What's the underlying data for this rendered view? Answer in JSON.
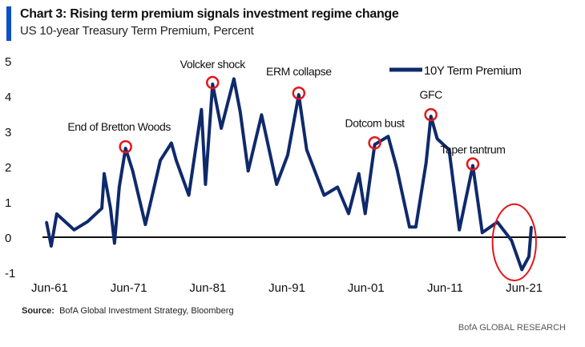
{
  "title": "Chart 3: Rising term premium signals investment regime change",
  "subtitle": "US 10-year Treasury Term Premium, Percent",
  "source_label": "Source:",
  "source_text": "BofA Global Investment Strategy, Bloomberg",
  "footer": "BofA GLOBAL RESEARCH",
  "colors": {
    "line": "#0f2a6b",
    "annotation": "#e3161b",
    "title_bar": "#0a4fc8"
  },
  "chart_data": {
    "type": "line",
    "title": "Chart 3: Rising term premium signals investment regime change",
    "ylabel": "",
    "xlabel": "",
    "ylim": [
      -1,
      5
    ],
    "xlim": [
      1961,
      2022.5
    ],
    "grid": false,
    "legend_position": "top-right",
    "yticks": [
      "5",
      "4",
      "3",
      "2",
      "1",
      "0",
      "-1"
    ],
    "xticks": [
      {
        "label": "Jun-61",
        "year": 1961.5
      },
      {
        "label": "Jun-71",
        "year": 1971.5
      },
      {
        "label": "Jun-81",
        "year": 1981.5
      },
      {
        "label": "Jun-91",
        "year": 1991.5
      },
      {
        "label": "Jun-01",
        "year": 2001.5
      },
      {
        "label": "Jun-11",
        "year": 2011.5
      },
      {
        "label": "Jun-21",
        "year": 2021.5
      }
    ],
    "series": [
      {
        "name": "10Y Term Premium",
        "x": [
          1961.1,
          1961.7,
          1962.4,
          1964.6,
          1966.3,
          1968.1,
          1968.4,
          1969.2,
          1969.7,
          1970.3,
          1971.1,
          1972.0,
          1973.6,
          1974.4,
          1975.5,
          1976.9,
          1977.5,
          1979.1,
          1980.7,
          1981.2,
          1982.1,
          1983.2,
          1984.8,
          1985.6,
          1986.6,
          1988.3,
          1990.2,
          1991.6,
          1993.0,
          1994.0,
          1996.2,
          1997.9,
          1999.3,
          2000.6,
          2001.4,
          2002.6,
          2004.3,
          2005.4,
          2007.0,
          2007.8,
          2009.1,
          2009.7,
          2010.5,
          2012.0,
          2013.3,
          2015.0,
          2016.2,
          2018.1,
          2019.9,
          2021.2,
          2022.1,
          2022.4
        ],
        "y": [
          0.43,
          -0.25,
          0.66,
          0.21,
          0.44,
          0.82,
          1.8,
          0.82,
          -0.17,
          1.42,
          2.52,
          1.88,
          0.36,
          1.12,
          2.18,
          2.67,
          2.18,
          1.19,
          3.62,
          1.5,
          4.34,
          3.09,
          4.49,
          3.55,
          1.88,
          3.47,
          1.5,
          2.33,
          4.04,
          2.48,
          1.19,
          1.42,
          0.67,
          1.8,
          0.67,
          2.63,
          2.86,
          1.95,
          0.29,
          0.29,
          2.11,
          3.43,
          2.79,
          2.48,
          0.21,
          2.03,
          0.13,
          0.43,
          -0.09,
          -0.92,
          -0.55,
          0.29
        ]
      }
    ],
    "annotations": [
      {
        "label": "End of Bretton  Woods",
        "x": 1971.1,
        "y": 2.52
      },
      {
        "label": "Volcker shock",
        "x": 1982.1,
        "y": 4.34
      },
      {
        "label": "ERM collapse",
        "x": 1993.0,
        "y": 4.04
      },
      {
        "label": "Dotcom  bust",
        "x": 2002.6,
        "y": 2.63
      },
      {
        "label": "GFC",
        "x": 2009.7,
        "y": 3.43
      },
      {
        "label": "Taper  tantrum",
        "x": 2015.0,
        "y": 2.03
      }
    ],
    "highlight_region": {
      "x": [
        2017.5,
        2023
      ],
      "y": [
        -1.0,
        0.8
      ]
    }
  }
}
